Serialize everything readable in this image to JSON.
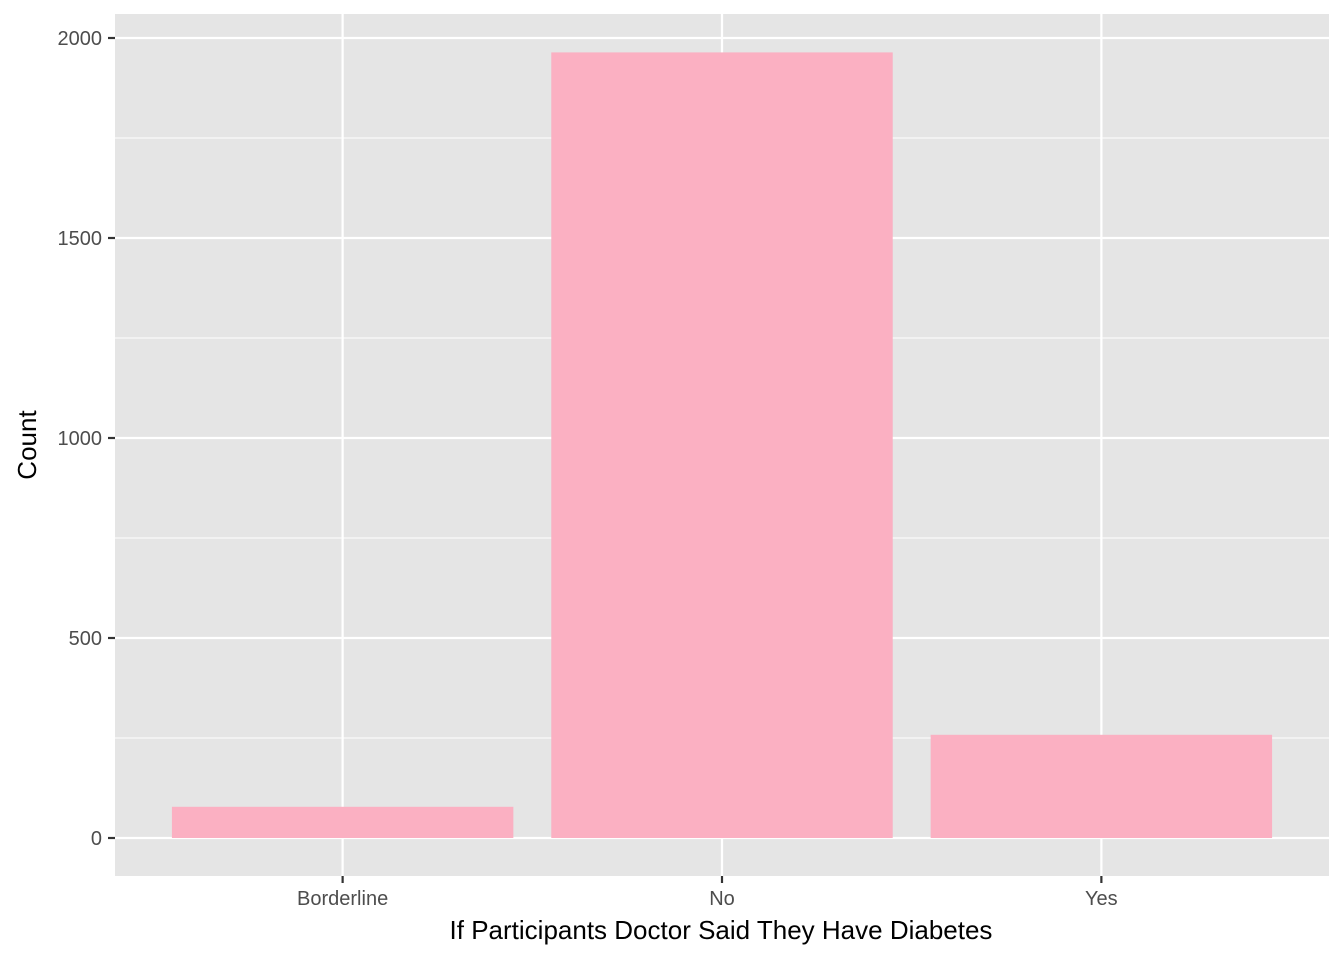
{
  "chart_data": {
    "type": "bar",
    "categories": [
      "Borderline",
      "No",
      "Yes"
    ],
    "values": [
      78,
      1964,
      258
    ],
    "xlabel": "If Participants Doctor Said They Have Diabetes",
    "ylabel": "Count",
    "ylim": [
      -95,
      2060
    ],
    "yticks": [
      0,
      500,
      1000,
      1500,
      2000
    ],
    "yticks_minor": [
      250,
      750,
      1250,
      1750
    ],
    "grid": true,
    "legend": "none",
    "colors": {
      "bar": "#FBB0C2",
      "panel": "#E5E5E5",
      "grid": "#FFFFFF",
      "tick_text": "#4D4D4D",
      "tick_mark": "#333333"
    }
  }
}
